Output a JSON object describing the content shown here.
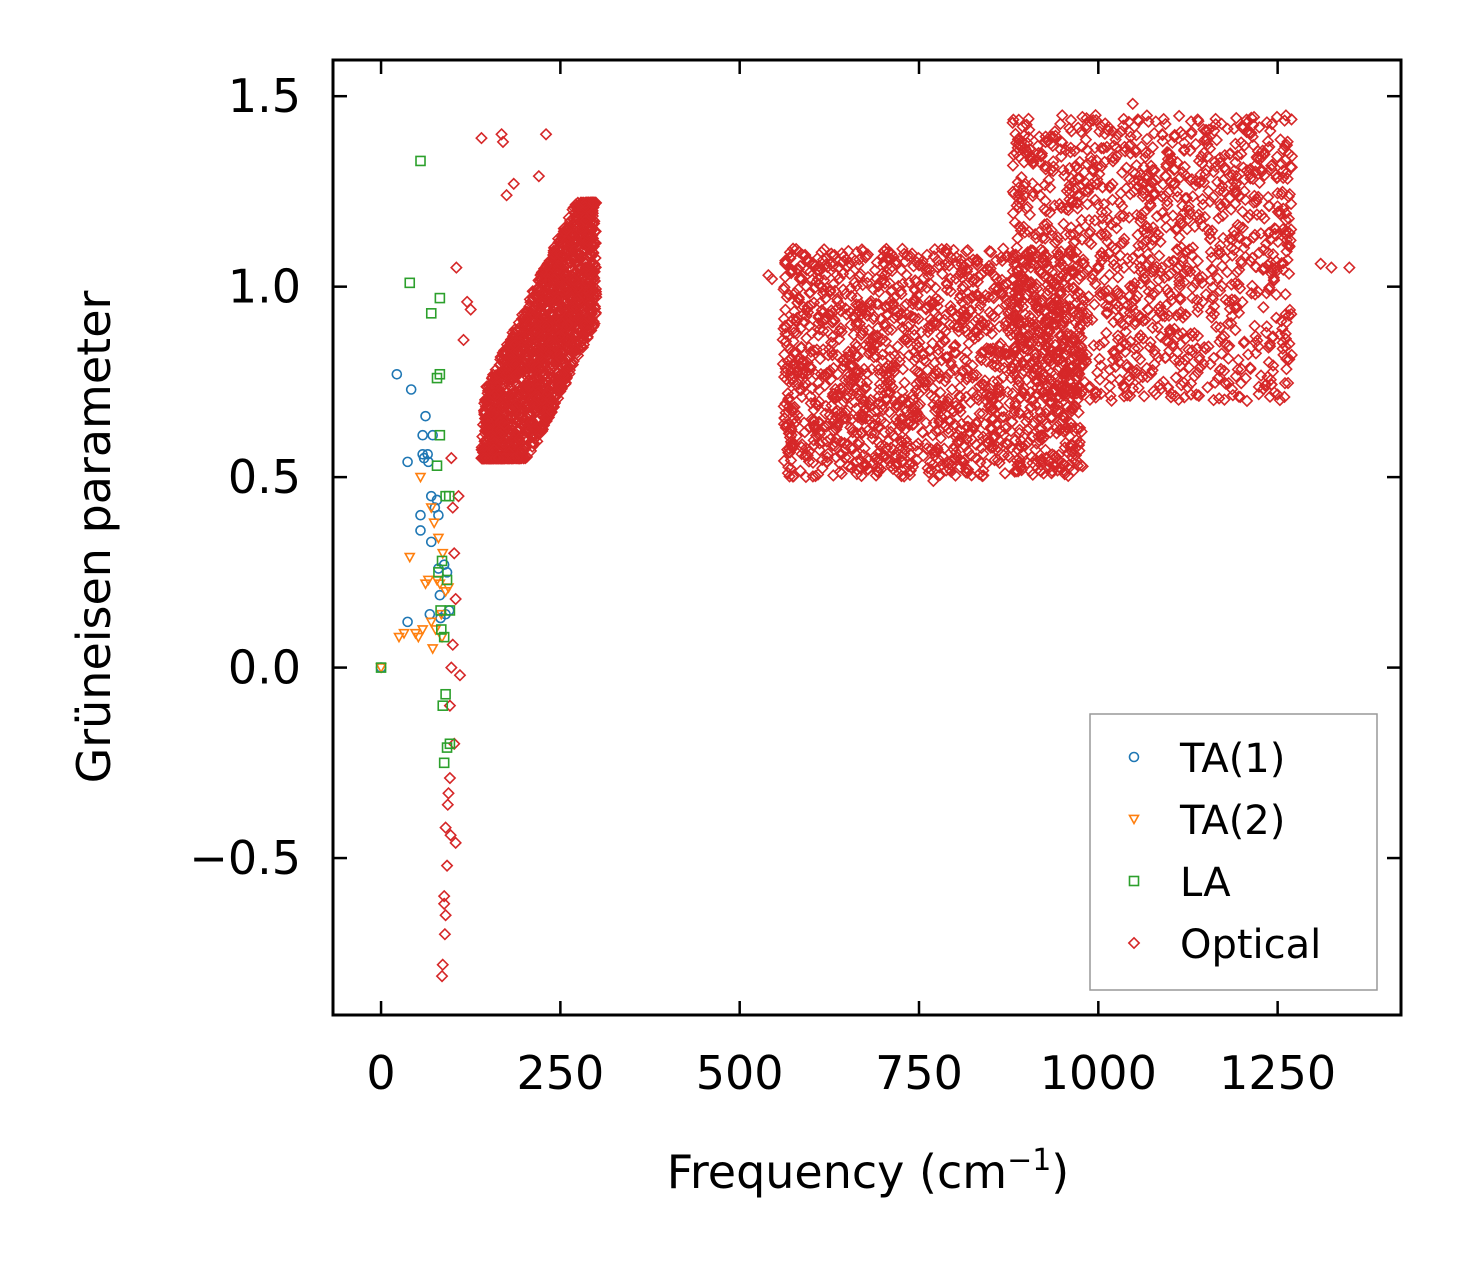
{
  "chart_data": {
    "type": "scatter",
    "title": "",
    "xlabel": "Frequency (cm",
    "xlabel_sup": "−1",
    "xlabel_end": ")",
    "ylabel": "Grüneisen parameter",
    "xlim": [
      -67,
      1422
    ],
    "ylim": [
      -0.912,
      1.595
    ],
    "xticks": [
      0,
      250,
      500,
      750,
      1000,
      1250
    ],
    "xtick_labels": [
      "0",
      "250",
      "500",
      "750",
      "1000",
      "1250"
    ],
    "yticks": [
      -0.5,
      0.0,
      0.5,
      1.0,
      1.5
    ],
    "ytick_labels": [
      "−0.5",
      "0.0",
      "0.5",
      "1.0",
      "1.5"
    ],
    "legend_position": "lower-right",
    "series": [
      {
        "name": "TA(1)",
        "marker": "circle",
        "color": "#1f77b4",
        "points": [
          [
            0,
            0
          ],
          [
            22,
            0.77
          ],
          [
            37,
            0.54
          ],
          [
            42,
            0.73
          ],
          [
            55,
            0.4
          ],
          [
            55,
            0.36
          ],
          [
            58,
            0.61
          ],
          [
            58,
            0.56
          ],
          [
            62,
            0.66
          ],
          [
            65,
            0.56
          ],
          [
            66,
            0.54
          ],
          [
            70,
            0.45
          ],
          [
            70,
            0.33
          ],
          [
            72,
            0.61
          ],
          [
            75,
            0.42
          ],
          [
            78,
            0.44
          ],
          [
            80,
            0.4
          ],
          [
            80,
            0.26
          ],
          [
            82,
            0.19
          ],
          [
            83,
            0.13
          ],
          [
            88,
            0.27
          ],
          [
            90,
            0.14
          ],
          [
            92,
            0.25
          ],
          [
            95,
            0.15
          ],
          [
            37,
            0.12
          ],
          [
            60,
            0.55
          ],
          [
            68,
            0.14
          ]
        ]
      },
      {
        "name": "TA(2)",
        "marker": "triangle-down",
        "color": "#ff7f0e",
        "points": [
          [
            0,
            0
          ],
          [
            25,
            0.08
          ],
          [
            32,
            0.09
          ],
          [
            40,
            0.29
          ],
          [
            48,
            0.09
          ],
          [
            52,
            0.08
          ],
          [
            55,
            0.5
          ],
          [
            58,
            0.1
          ],
          [
            62,
            0.22
          ],
          [
            66,
            0.23
          ],
          [
            70,
            0.12
          ],
          [
            72,
            0.05
          ],
          [
            74,
            0.38
          ],
          [
            76,
            0.1
          ],
          [
            80,
            0.34
          ],
          [
            82,
            0.22
          ],
          [
            84,
            0.14
          ],
          [
            86,
            0.3
          ],
          [
            90,
            0.2
          ],
          [
            94,
            0.21
          ],
          [
            70,
            0.42
          ],
          [
            78,
            0.23
          ],
          [
            85,
            0.08
          ]
        ]
      },
      {
        "name": "LA",
        "marker": "square",
        "color": "#2ca02c",
        "points": [
          [
            0,
            0
          ],
          [
            55,
            1.33
          ],
          [
            40,
            1.01
          ],
          [
            70,
            0.93
          ],
          [
            82,
            0.97
          ],
          [
            78,
            0.76
          ],
          [
            82,
            0.77
          ],
          [
            82,
            0.61
          ],
          [
            78,
            0.53
          ],
          [
            90,
            0.45
          ],
          [
            95,
            0.45
          ],
          [
            85,
            0.28
          ],
          [
            92,
            0.23
          ],
          [
            96,
            0.15
          ],
          [
            83,
            0.15
          ],
          [
            84,
            0.1
          ],
          [
            90,
            -0.07
          ],
          [
            86,
            -0.1
          ],
          [
            96,
            -0.2
          ],
          [
            92,
            -0.21
          ],
          [
            88,
            -0.25
          ],
          [
            80,
            0.25
          ],
          [
            88,
            0.08
          ]
        ]
      },
      {
        "name": "Optical",
        "marker": "diamond",
        "color": "#d62728",
        "clusters": [
          {
            "x": [
              140,
              300
            ],
            "y": [
              0.55,
              1.22
            ],
            "center_line": [
              [
                100,
                0.35
              ],
              [
                300,
                1.12
              ]
            ],
            "count": 1900
          },
          {
            "x": [
              560,
              980
            ],
            "y": [
              0.5,
              1.1
            ],
            "count": 1700
          },
          {
            "x": [
              880,
              1270
            ],
            "y": [
              0.7,
              1.45
            ],
            "count": 1300
          }
        ],
        "points": [
          [
            140,
            1.39
          ],
          [
            168,
            1.4
          ],
          [
            230,
            1.4
          ],
          [
            170,
            1.38
          ],
          [
            175,
            1.24
          ],
          [
            185,
            1.27
          ],
          [
            220,
            1.29
          ],
          [
            105,
            1.05
          ],
          [
            120,
            0.96
          ],
          [
            115,
            0.86
          ],
          [
            125,
            0.94
          ],
          [
            98,
            0.55
          ],
          [
            100,
            0.42
          ],
          [
            102,
            0.3
          ],
          [
            104,
            0.18
          ],
          [
            100,
            0.06
          ],
          [
            98,
            0.0
          ],
          [
            110,
            -0.02
          ],
          [
            96,
            -0.1
          ],
          [
            102,
            -0.2
          ],
          [
            96,
            -0.29
          ],
          [
            93,
            -0.36
          ],
          [
            90,
            -0.42
          ],
          [
            97,
            -0.44
          ],
          [
            104,
            -0.46
          ],
          [
            92,
            -0.52
          ],
          [
            88,
            -0.6
          ],
          [
            90,
            -0.65
          ],
          [
            89,
            -0.7
          ],
          [
            86,
            -0.78
          ],
          [
            85,
            -0.81
          ],
          [
            88,
            -0.62
          ],
          [
            94,
            -0.33
          ],
          [
            108,
            0.45
          ],
          [
            1048,
            1.48
          ],
          [
            1050,
            1.42
          ],
          [
            1120,
            1.36
          ],
          [
            1100,
            1.33
          ],
          [
            1310,
            1.06
          ],
          [
            1325,
            1.05
          ],
          [
            1350,
            1.05
          ],
          [
            540,
            1.03
          ],
          [
            545,
            1.02
          ],
          [
            960,
            0.58
          ],
          [
            870,
            0.51
          ],
          [
            770,
            0.49
          ],
          [
            970,
            0.72
          ],
          [
            730,
            0.95
          ],
          [
            890,
            0.79
          ]
        ]
      }
    ]
  }
}
